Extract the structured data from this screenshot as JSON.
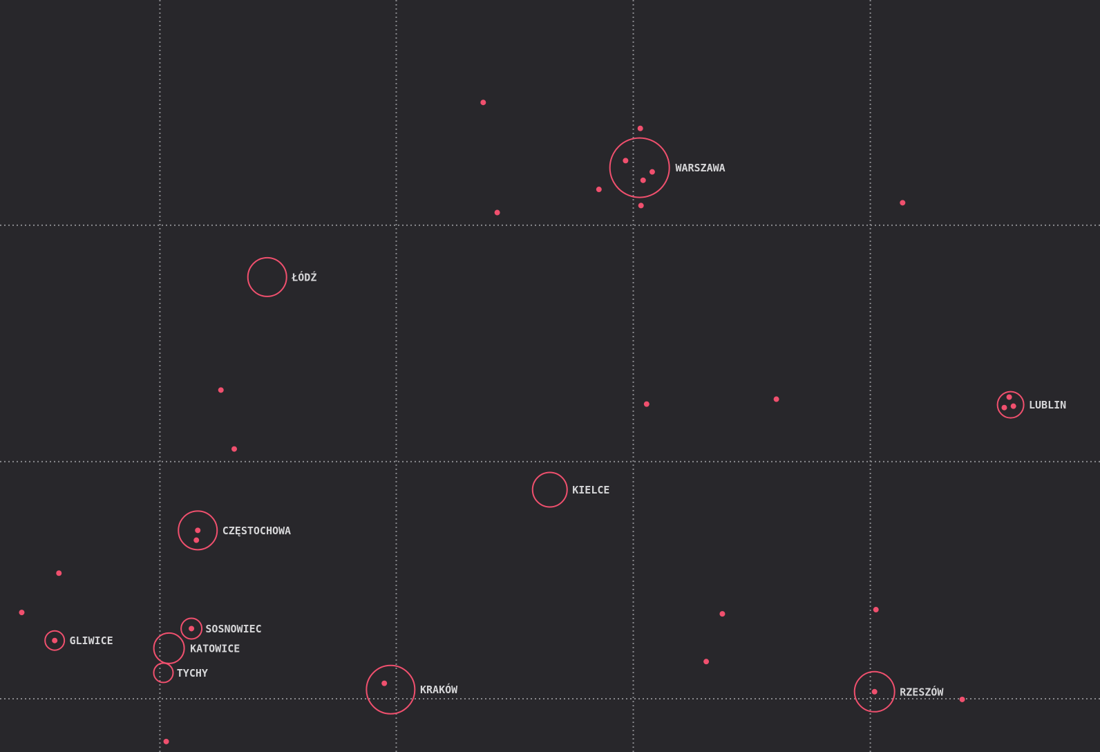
{
  "colors": {
    "background": "#28272b",
    "accent": "#f0506e",
    "label": "#d6d6d8",
    "grid": "#8a8a8e"
  },
  "cities": [
    {
      "name": "WARSZAWA"
    },
    {
      "name": "ŁÓDŹ"
    },
    {
      "name": "LUBLIN"
    },
    {
      "name": "KIELCE"
    },
    {
      "name": "CZĘSTOCHOWA"
    },
    {
      "name": "SOSNOWIEC"
    },
    {
      "name": "GLIWICE"
    },
    {
      "name": "KATOWICE"
    },
    {
      "name": "TYCHY"
    },
    {
      "name": "KRAKÓW"
    },
    {
      "name": "RZESZÓW"
    }
  ]
}
